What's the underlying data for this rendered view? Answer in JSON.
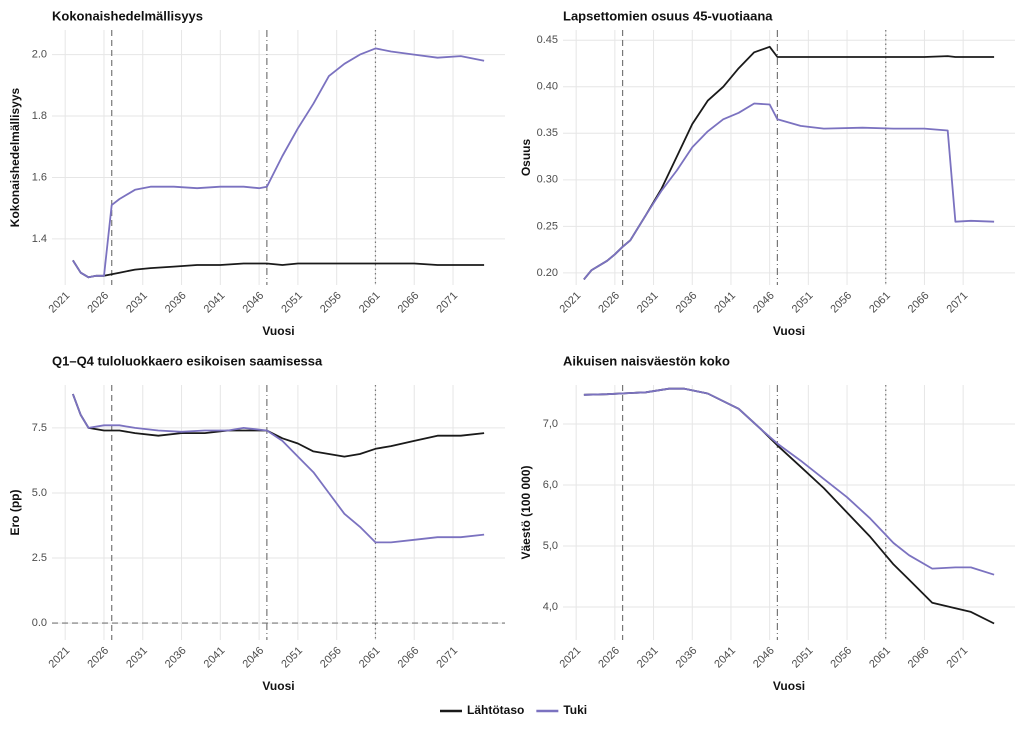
{
  "chart_data": [
    {
      "type": "line",
      "title": "Kokonaishedelmällisyys",
      "xlabel": "Vuosi",
      "ylabel": "Kokonaishedelmällisyys",
      "x": [
        2022,
        2023,
        2024,
        2025,
        2026,
        2027,
        2028,
        2030,
        2032,
        2035,
        2038,
        2041,
        2044,
        2046,
        2047,
        2049,
        2051,
        2053,
        2055,
        2057,
        2059,
        2061,
        2063,
        2066,
        2069,
        2072,
        2075
      ],
      "series": [
        {
          "name": "Lähtötaso",
          "color": "#1a1a1a",
          "values": [
            1.33,
            1.29,
            1.275,
            1.28,
            1.28,
            1.285,
            1.29,
            1.3,
            1.305,
            1.31,
            1.315,
            1.315,
            1.32,
            1.32,
            1.32,
            1.315,
            1.32,
            1.32,
            1.32,
            1.32,
            1.32,
            1.32,
            1.32,
            1.32,
            1.315,
            1.315,
            1.315
          ]
        },
        {
          "name": "Tuki",
          "color": "#7b72c0",
          "values": [
            1.33,
            1.29,
            1.275,
            1.28,
            1.28,
            1.51,
            1.53,
            1.56,
            1.57,
            1.57,
            1.565,
            1.57,
            1.57,
            1.565,
            1.57,
            1.67,
            1.76,
            1.84,
            1.93,
            1.97,
            2.0,
            2.02,
            2.01,
            2.0,
            1.99,
            1.995,
            1.98
          ]
        }
      ],
      "xlim": [
        2019.3,
        2077.7
      ],
      "ylim": [
        1.25,
        2.08
      ],
      "xticks": [
        2021,
        2026,
        2031,
        2036,
        2041,
        2046,
        2051,
        2056,
        2061,
        2066,
        2071
      ],
      "yticks": [
        1.4,
        1.6,
        1.8,
        {
          "value": 2.0,
          "label": "2.0"
        }
      ],
      "vlines": [
        {
          "value": 2027,
          "dash": "dashed"
        },
        {
          "value": 2047,
          "dash": "dashdot"
        },
        {
          "value": 2061,
          "dash": "dotted"
        }
      ],
      "grid": true
    },
    {
      "type": "line",
      "title": "Lapsettomien osuus 45-vuotiaana",
      "xlabel": "Vuosi",
      "ylabel": "Osuus",
      "x": [
        2022,
        2023,
        2025,
        2026,
        2027,
        2028,
        2030,
        2032,
        2034,
        2036,
        2038,
        2040,
        2042,
        2044,
        2046,
        2047,
        2050,
        2053,
        2058,
        2062,
        2066,
        2069,
        2070,
        2072,
        2075
      ],
      "series": [
        {
          "color": "#1a1a1a",
          "values": [
            0.193,
            0.203,
            0.213,
            0.22,
            0.228,
            0.235,
            0.262,
            0.29,
            0.325,
            0.36,
            0.385,
            0.4,
            0.42,
            0.437,
            0.443,
            0.432,
            0.432,
            0.432,
            0.432,
            0.432,
            0.432,
            0.433,
            0.432,
            0.432,
            0.432
          ]
        },
        {
          "color": "#7b72c0",
          "values": [
            0.193,
            0.203,
            0.213,
            0.22,
            0.228,
            0.235,
            0.262,
            0.288,
            0.31,
            0.335,
            0.352,
            0.365,
            0.372,
            0.382,
            0.381,
            0.365,
            0.358,
            0.355,
            0.356,
            0.355,
            0.355,
            0.353,
            0.255,
            0.256,
            0.255
          ]
        }
      ],
      "xlim": [
        2019.3,
        2077.7
      ],
      "ylim": [
        0.187,
        0.461
      ],
      "xticks": [
        2021,
        2026,
        2031,
        2036,
        2041,
        2046,
        2051,
        2056,
        2061,
        2066,
        2071
      ],
      "yticks": [
        {
          "value": 0.2,
          "label": "0.20"
        },
        0.25,
        {
          "value": 0.3,
          "label": "0.30"
        },
        0.35,
        {
          "value": 0.4,
          "label": "0.40"
        },
        0.45
      ],
      "vlines": [
        {
          "value": 2027,
          "dash": "dashed"
        },
        {
          "value": 2047,
          "dash": "dashdot"
        },
        {
          "value": 2061,
          "dash": "dotted"
        }
      ],
      "grid": true
    },
    {
      "type": "line",
      "title": "Q1–Q4 tuloluokkaero esikoisen saamisessa",
      "xlabel": "Vuosi",
      "ylabel": "Ero (pp)",
      "x": [
        2022,
        2023,
        2024,
        2026,
        2028,
        2030,
        2033,
        2036,
        2039,
        2042,
        2044,
        2047,
        2049,
        2051,
        2053,
        2055,
        2057,
        2059,
        2061,
        2063,
        2066,
        2069,
        2072,
        2075
      ],
      "series": [
        {
          "color": "#1a1a1a",
          "values": [
            8.8,
            8.0,
            7.5,
            7.4,
            7.4,
            7.3,
            7.2,
            7.3,
            7.3,
            7.4,
            7.4,
            7.4,
            7.1,
            6.9,
            6.6,
            6.5,
            6.4,
            6.5,
            6.7,
            6.8,
            7.0,
            7.2,
            7.2,
            7.3
          ]
        },
        {
          "color": "#7b72c0",
          "values": [
            8.8,
            8.0,
            7.5,
            7.6,
            7.6,
            7.5,
            7.4,
            7.35,
            7.4,
            7.4,
            7.5,
            7.4,
            7.0,
            6.4,
            5.8,
            5.0,
            4.2,
            3.7,
            3.1,
            3.1,
            3.2,
            3.3,
            3.3,
            3.4
          ]
        }
      ],
      "xlim": [
        2019.3,
        2077.7
      ],
      "ylim": [
        -0.65,
        9.15
      ],
      "xticks": [
        2021,
        2026,
        2031,
        2036,
        2041,
        2046,
        2051,
        2056,
        2061,
        2066,
        2071
      ],
      "yticks": [
        {
          "value": 0,
          "label": "0.0"
        },
        2.5,
        {
          "value": 5,
          "label": "5.0"
        },
        7.5
      ],
      "vlines": [
        {
          "value": 2027,
          "dash": "dashed"
        },
        {
          "value": 2047,
          "dash": "dashdot"
        },
        {
          "value": 2061,
          "dash": "dotted"
        }
      ],
      "hlines": [
        {
          "value": 0,
          "dash": "dashed"
        }
      ],
      "grid": true
    },
    {
      "type": "line",
      "title": "Aikuisen naisväestön koko",
      "xlabel": "Vuosi",
      "ylabel": "Väestö (100 000)",
      "x": [
        2022,
        2025,
        2030,
        2033,
        2035,
        2038,
        2042,
        2045,
        2047,
        2050,
        2053,
        2056,
        2059,
        2062,
        2064,
        2067,
        2070,
        2072,
        2075
      ],
      "series": [
        {
          "color": "#1a1a1a",
          "values": [
            7.48,
            7.49,
            7.52,
            7.58,
            7.58,
            7.5,
            7.25,
            6.9,
            6.65,
            6.3,
            5.95,
            5.55,
            5.15,
            4.7,
            4.45,
            4.07,
            3.98,
            3.92,
            3.73
          ]
        },
        {
          "color": "#7b72c0",
          "values": [
            7.48,
            7.49,
            7.52,
            7.58,
            7.58,
            7.5,
            7.25,
            6.9,
            6.68,
            6.4,
            6.1,
            5.8,
            5.45,
            5.05,
            4.85,
            4.63,
            4.65,
            4.65,
            4.53
          ]
        }
      ],
      "xlim": [
        2019.3,
        2077.7
      ],
      "ylim": [
        3.46,
        7.64
      ],
      "xticks": [
        2021,
        2026,
        2031,
        2036,
        2041,
        2046,
        2051,
        2056,
        2061,
        2066,
        2071
      ],
      "yticks": [
        {
          "value": 4,
          "label": "4,0"
        },
        {
          "value": 5,
          "label": "5,0"
        },
        {
          "value": 6,
          "label": "6,0"
        },
        {
          "value": 7,
          "label": "7,0"
        }
      ],
      "vlines": [
        {
          "value": 2027,
          "dash": "dashed"
        },
        {
          "value": 2047,
          "dash": "dashdot"
        },
        {
          "value": 2061,
          "dash": "dotted"
        }
      ],
      "grid": true
    }
  ]
}
